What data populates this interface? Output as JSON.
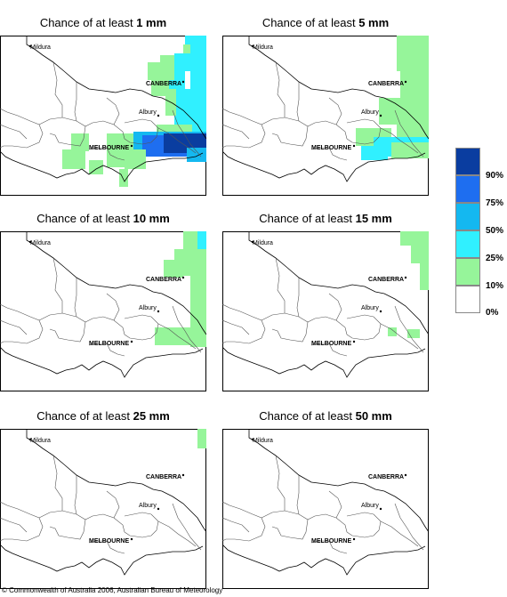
{
  "panels": [
    {
      "prefix": "Chance of at least ",
      "amount": "1 mm"
    },
    {
      "prefix": "Chance of at least ",
      "amount": "5 mm"
    },
    {
      "prefix": "Chance of at least ",
      "amount": "10 mm"
    },
    {
      "prefix": "Chance of at least ",
      "amount": "15 mm"
    },
    {
      "prefix": "Chance of at least ",
      "amount": "25 mm"
    },
    {
      "prefix": "Chance of at least ",
      "amount": "50 mm"
    }
  ],
  "places": {
    "mildura": "Mildura",
    "canberra": "CANBERRA",
    "albury": "Albury",
    "melbourne": "MELBOURNE"
  },
  "legend": {
    "labels": [
      "90%",
      "75%",
      "50%",
      "25%",
      "10%",
      "0%"
    ],
    "colors": [
      "#0a3da0",
      "#1e6ef0",
      "#14b8f0",
      "#30f0ff",
      "#96f59a",
      "#ffffff"
    ]
  },
  "copyright": "© Commonwealth of Australia 2006, Australian Bureau of Meteorology"
}
